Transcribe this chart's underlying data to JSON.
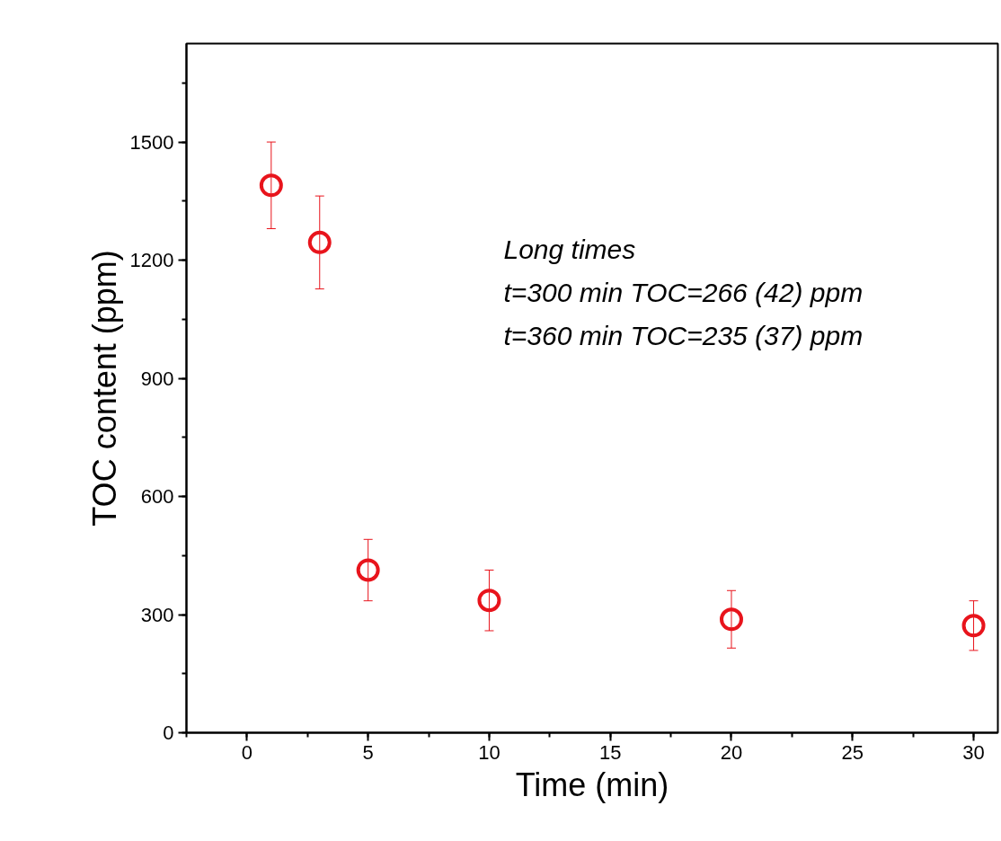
{
  "chart_data": {
    "type": "scatter",
    "xlabel": "Time (min)",
    "ylabel": "TOC content (ppm)",
    "x": [
      1,
      3,
      5,
      10,
      20,
      30
    ],
    "series": [
      {
        "color": "#e8141c",
        "values": [
          1390,
          1245,
          413,
          336,
          288,
          272
        ],
        "errors": [
          110,
          118,
          78,
          77,
          73,
          63
        ]
      }
    ],
    "xlim": [
      -2.5,
      31
    ],
    "ylim": [
      0,
      1750
    ],
    "xticks": [
      0,
      5,
      10,
      15,
      20,
      25,
      30
    ],
    "yticks": [
      0,
      300,
      600,
      900,
      1200,
      1500
    ],
    "marker": "circle",
    "grid": false,
    "annotations": [
      "Long times",
      "t=300 min TOC=266 (42) ppm",
      "t=360 min TOC=235 (37) ppm"
    ]
  }
}
